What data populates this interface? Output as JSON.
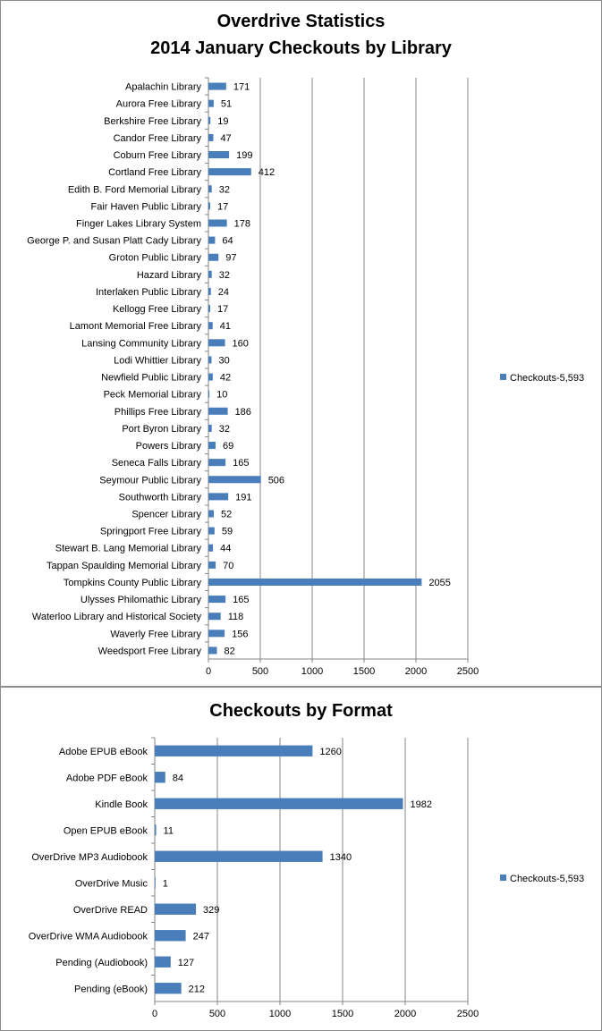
{
  "colors": {
    "bar": "#4a7ebb",
    "grid": "#868686",
    "axis": "#868686"
  },
  "chart_data": [
    {
      "type": "bar",
      "orientation": "horizontal",
      "title": "Overdrive Statistics",
      "subtitle": "2014 January Checkouts by Library",
      "xlabel": "",
      "ylabel": "",
      "xlim": [
        0,
        2500
      ],
      "ticks": [
        "0",
        "500",
        "1000",
        "1500",
        "2000",
        "2500"
      ],
      "grid": true,
      "legend_position": "right",
      "categories": [
        "Apalachin Library",
        "Aurora Free Library",
        "Berkshire Free Library",
        "Candor Free Library",
        "Coburn Free Library",
        "Cortland Free Library",
        "Edith B. Ford Memorial Library",
        "Fair Haven Public Library",
        "Finger Lakes Library System",
        "George P. and Susan Platt Cady Library",
        "Groton Public Library",
        "Hazard Library",
        "Interlaken Public Library",
        "Kellogg Free Library",
        "Lamont Memorial Free Library",
        "Lansing Community Library",
        "Lodi Whittier Library",
        "Newfield Public Library",
        "Peck Memorial Library",
        "Phillips Free Library",
        "Port Byron Library",
        "Powers Library",
        "Seneca Falls Library",
        "Seymour Public Library",
        "Southworth Library",
        "Spencer Library",
        "Springport Free Library",
        "Stewart B. Lang Memorial Library",
        "Tappan Spaulding Memorial Library",
        "Tompkins County Public Library",
        "Ulysses Philomathic Library",
        "Waterloo Library and Historical Society",
        "Waverly Free Library",
        "Weedsport Free Library"
      ],
      "series": [
        {
          "name": "Checkouts-5,593",
          "values": [
            171,
            51,
            19,
            47,
            199,
            412,
            32,
            17,
            178,
            64,
            97,
            32,
            24,
            17,
            41,
            160,
            30,
            42,
            10,
            186,
            32,
            69,
            165,
            506,
            191,
            52,
            59,
            44,
            70,
            2055,
            165,
            118,
            156,
            82
          ]
        }
      ]
    },
    {
      "type": "bar",
      "orientation": "horizontal",
      "title": "Checkouts by Format",
      "xlabel": "",
      "ylabel": "",
      "xlim": [
        0,
        2500
      ],
      "ticks": [
        "0",
        "500",
        "1000",
        "1500",
        "2000",
        "2500"
      ],
      "grid": true,
      "legend_position": "right",
      "categories": [
        "Adobe EPUB eBook",
        "Adobe PDF eBook",
        "Kindle Book",
        "Open EPUB eBook",
        "OverDrive MP3 Audiobook",
        "OverDrive Music",
        "OverDrive READ",
        "OverDrive WMA Audiobook",
        "Pending (Audiobook)",
        "Pending (eBook)"
      ],
      "series": [
        {
          "name": "Checkouts-5,593",
          "values": [
            1260,
            84,
            1982,
            11,
            1340,
            1,
            329,
            247,
            127,
            212
          ]
        }
      ]
    }
  ]
}
